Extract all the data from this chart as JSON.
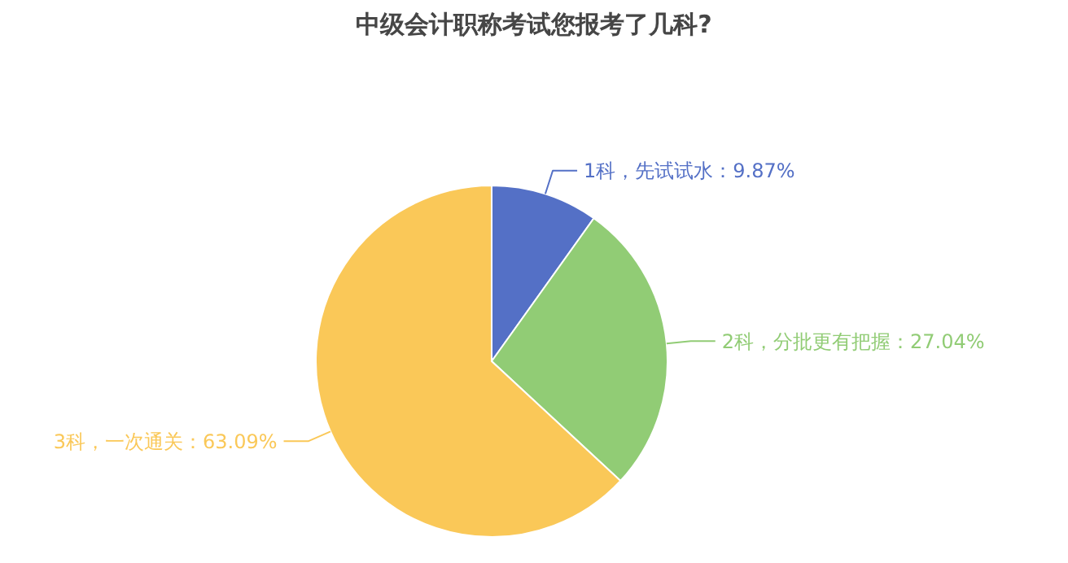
{
  "chart_data": {
    "type": "pie",
    "title": "中级会计职称考试您报考了几科?",
    "categories": [
      "1科，先试试水",
      "2科，分批更有把握",
      "3科，一次通关"
    ],
    "values": [
      9.87,
      27.04,
      63.09
    ],
    "value_labels": [
      "9.87%",
      "27.04%",
      "63.09%"
    ],
    "colors": [
      "#5470c6",
      "#91cc75",
      "#fac858"
    ]
  }
}
